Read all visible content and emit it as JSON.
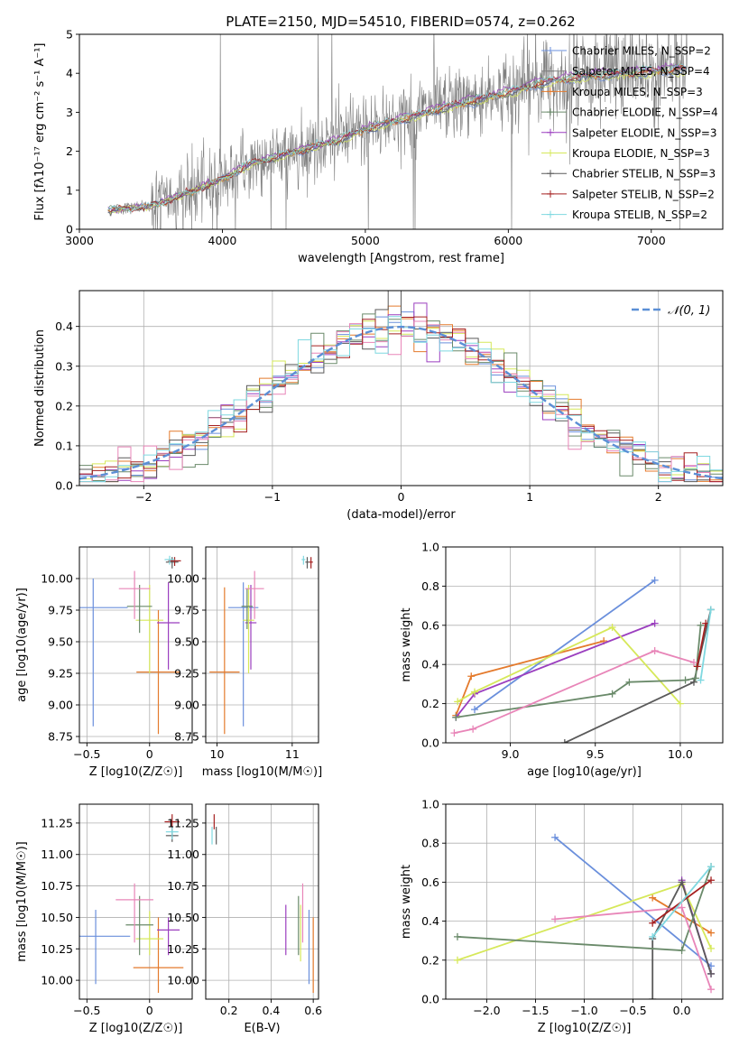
{
  "figure": {
    "title": "PLATE=2150, MJD=54510, FIBERID=0574, z=0.262"
  },
  "series_colors": [
    "#6a8fdc",
    "#e47a2c",
    "#9b3fbf",
    "#d6e85a",
    "#5a5a5a",
    "#6a8a6a",
    "#e885b8",
    "#a52020",
    "#7fd8e0"
  ],
  "chart_data": [
    {
      "id": "spectrum",
      "type": "line",
      "title": "PLATE=2150, MJD=54510, FIBERID=0574, z=0.262",
      "xlabel": "wavelength [Angstrom, rest frame]",
      "ylabel": "Flux [fλ10⁻¹⁷ erg cm⁻² s⁻¹ A⁻¹]",
      "xlim": [
        3000,
        7500
      ],
      "ylim": [
        0,
        5
      ],
      "xticks": [
        3000,
        4000,
        5000,
        6000,
        7000
      ],
      "yticks": [
        0,
        1,
        2,
        3,
        4,
        5
      ],
      "grid": false,
      "legend_position": "top-right",
      "observed_color": "#808080",
      "observed_range": [
        3200,
        7250
      ],
      "model_curve": {
        "x": [
          3200,
          3500,
          3800,
          4000,
          4200,
          4500,
          4800,
          5000,
          5300,
          5600,
          6000,
          6300,
          6600,
          6900,
          7200
        ],
        "y": [
          0.5,
          0.6,
          1.0,
          1.3,
          1.7,
          2.0,
          2.3,
          2.6,
          2.9,
          3.2,
          3.55,
          3.85,
          4.0,
          4.05,
          4.15
        ]
      },
      "series": [
        {
          "name": "Chabrier MILES, N_SSP=2",
          "color": "#6a8fdc"
        },
        {
          "name": "Salpeter MILES, N_SSP=4",
          "color": "#808080"
        },
        {
          "name": "Kroupa MILES, N_SSP=3",
          "color": "#e47a2c"
        },
        {
          "name": "Chabrier ELODIE, N_SSP=4",
          "color": "#6a8a6a"
        },
        {
          "name": "Salpeter ELODIE, N_SSP=3",
          "color": "#9b3fbf"
        },
        {
          "name": "Kroupa ELODIE, N_SSP=3",
          "color": "#d6e85a"
        },
        {
          "name": "Chabrier STELIB, N_SSP=3",
          "color": "#5a5a5a"
        },
        {
          "name": "Salpeter STELIB, N_SSP=2",
          "color": "#a52020"
        },
        {
          "name": "Kroupa STELIB, N_SSP=2",
          "color": "#7fd8e0"
        }
      ]
    },
    {
      "id": "residuals",
      "type": "line",
      "xlabel": "(data-model)/error",
      "ylabel": "Normed distribution",
      "xlim": [
        -2.5,
        2.5
      ],
      "ylim": [
        0,
        0.49
      ],
      "xticks": [
        -2,
        -1,
        0,
        1,
        2
      ],
      "yticks": [
        0.0,
        0.1,
        0.2,
        0.3,
        0.4
      ],
      "grid": true,
      "legend_position": "top-right",
      "gaussian": {
        "label": "𝒩(0, 1)",
        "color": "#5b8fd6"
      },
      "bin_width": 0.1
    },
    {
      "id": "age_vs_Z",
      "type": "scatter",
      "xlabel": "Z [log10(Z/Z☉)]",
      "ylabel": "age  [log10(age/yr)]",
      "xlim": [
        -0.56,
        0.34
      ],
      "ylim": [
        8.7,
        10.25
      ],
      "xticks": [
        -0.5,
        0.0
      ],
      "yticks": [
        8.75,
        9.0,
        9.25,
        9.5,
        9.75,
        10.0
      ],
      "grid": true,
      "points": [
        {
          "x": -0.45,
          "y": 9.77,
          "xerr": 0.55,
          "yerr": [
            8.83,
            10.0
          ],
          "color": "#6a8fdc"
        },
        {
          "x": 0.07,
          "y": 9.26,
          "xerr": 0.35,
          "yerr": [
            8.77,
            9.75
          ],
          "color": "#e47a2c"
        },
        {
          "x": 0.15,
          "y": 9.65,
          "xerr": 0.18,
          "yerr": [
            9.28,
            9.97
          ],
          "color": "#9b3fbf"
        },
        {
          "x": 0.0,
          "y": 9.67,
          "xerr": 0.22,
          "yerr": [
            9.25,
            9.95
          ],
          "color": "#d6e85a"
        },
        {
          "x": 0.18,
          "y": 10.13,
          "xerr": 0.1,
          "yerr": [
            10.08,
            10.17
          ],
          "color": "#5a5a5a"
        },
        {
          "x": -0.08,
          "y": 9.78,
          "xerr": 0.2,
          "yerr": [
            9.57,
            9.95
          ],
          "color": "#6a8a6a"
        },
        {
          "x": -0.12,
          "y": 9.92,
          "xerr": 0.25,
          "yerr": [
            9.68,
            10.06
          ],
          "color": "#e885b8"
        },
        {
          "x": 0.2,
          "y": 10.14,
          "xerr": 0.1,
          "yerr": [
            10.1,
            10.17
          ],
          "color": "#a52020"
        },
        {
          "x": 0.16,
          "y": 10.15,
          "xerr": 0.08,
          "yerr": [
            10.11,
            10.18
          ],
          "color": "#7fd8e0"
        }
      ]
    },
    {
      "id": "age_vs_mass",
      "type": "scatter",
      "xlabel": "mass [log10(M/M☉)]",
      "ylabel": "",
      "xlim": [
        9.85,
        11.35
      ],
      "ylim": [
        8.7,
        10.25
      ],
      "xticks": [
        10,
        11
      ],
      "yticks": [
        8.75,
        9.0,
        9.25,
        9.5,
        9.75,
        10.0
      ],
      "grid": true,
      "points": [
        {
          "x": 10.35,
          "y": 9.77,
          "xerr": 0.4,
          "yerr": [
            8.83,
            9.97
          ],
          "color": "#6a8fdc"
        },
        {
          "x": 10.1,
          "y": 9.26,
          "xerr": 0.4,
          "yerr": [
            8.77,
            9.93
          ],
          "color": "#e47a2c"
        },
        {
          "x": 10.45,
          "y": 9.65,
          "xerr": 0.15,
          "yerr": [
            9.28,
            9.95
          ],
          "color": "#9b3fbf"
        },
        {
          "x": 10.42,
          "y": 9.67,
          "xerr": 0.15,
          "yerr": [
            9.25,
            9.95
          ],
          "color": "#d6e85a"
        },
        {
          "x": 11.2,
          "y": 10.13,
          "xerr": 0.05,
          "yerr": [
            10.08,
            10.17
          ],
          "color": "#5a5a5a"
        },
        {
          "x": 10.4,
          "y": 9.78,
          "xerr": 0.15,
          "yerr": [
            9.6,
            9.92
          ],
          "color": "#6a8a6a"
        },
        {
          "x": 10.5,
          "y": 9.92,
          "xerr": 0.25,
          "yerr": [
            9.68,
            10.06
          ],
          "color": "#e885b8"
        },
        {
          "x": 11.25,
          "y": 10.13,
          "xerr": 0.05,
          "yerr": [
            10.08,
            10.17
          ],
          "color": "#a52020"
        },
        {
          "x": 11.15,
          "y": 10.15,
          "xerr": 0.05,
          "yerr": [
            10.11,
            10.18
          ],
          "color": "#7fd8e0"
        }
      ]
    },
    {
      "id": "weight_vs_age",
      "type": "line",
      "xlabel": "age  [log10(age/yr)]",
      "ylabel": "mass weight",
      "xlim": [
        8.62,
        10.25
      ],
      "ylim": [
        0.0,
        1.0
      ],
      "xticks": [
        9.0,
        9.5,
        10.0
      ],
      "yticks": [
        0.0,
        0.2,
        0.4,
        0.6,
        0.8,
        1.0
      ],
      "grid": true,
      "series": [
        {
          "color": "#6a8fdc",
          "x": [
            8.79,
            9.85
          ],
          "y": [
            0.17,
            0.83
          ]
        },
        {
          "color": "#e47a2c",
          "x": [
            8.68,
            8.77,
            9.55
          ],
          "y": [
            0.14,
            0.34,
            0.52
          ]
        },
        {
          "color": "#9b3fbf",
          "x": [
            8.68,
            8.79,
            9.85
          ],
          "y": [
            0.13,
            0.25,
            0.61
          ]
        },
        {
          "color": "#d6e85a",
          "x": [
            8.69,
            8.79,
            9.6,
            10.0
          ],
          "y": [
            0.21,
            0.26,
            0.59,
            0.2
          ]
        },
        {
          "color": "#5a5a5a",
          "x": [
            9.32,
            10.08,
            10.18
          ],
          "y": [
            0.0,
            0.31,
            0.68
          ]
        },
        {
          "color": "#6a8a6a",
          "x": [
            8.68,
            9.6,
            9.7,
            10.03,
            10.09,
            10.12
          ],
          "y": [
            0.13,
            0.25,
            0.31,
            0.32,
            0.33,
            0.6
          ]
        },
        {
          "color": "#e885b8",
          "x": [
            8.67,
            8.78,
            9.85,
            10.08
          ],
          "y": [
            0.05,
            0.07,
            0.47,
            0.41
          ]
        },
        {
          "color": "#a52020",
          "x": [
            10.1,
            10.15
          ],
          "y": [
            0.39,
            0.61
          ]
        },
        {
          "color": "#7fd8e0",
          "x": [
            10.12,
            10.18
          ],
          "y": [
            0.32,
            0.68
          ]
        }
      ]
    },
    {
      "id": "mass_vs_Z",
      "type": "scatter",
      "xlabel": "Z [log10(Z/Z☉)]",
      "ylabel": "mass [log10(M/M☉)]",
      "xlim": [
        -0.56,
        0.34
      ],
      "ylim": [
        9.85,
        11.4
      ],
      "xticks": [
        -0.5,
        0.0
      ],
      "yticks": [
        10.0,
        10.25,
        10.5,
        10.75,
        11.0,
        11.25
      ],
      "grid": true,
      "points": [
        {
          "x": -0.43,
          "y": 10.35,
          "xerr": 0.55,
          "yerr": [
            9.97,
            10.56
          ],
          "color": "#6a8fdc"
        },
        {
          "x": 0.07,
          "y": 10.1,
          "xerr": 0.4,
          "yerr": [
            9.9,
            10.5
          ],
          "color": "#e47a2c"
        },
        {
          "x": 0.15,
          "y": 10.4,
          "xerr": 0.18,
          "yerr": [
            10.2,
            10.5
          ],
          "color": "#9b3fbf"
        },
        {
          "x": 0.0,
          "y": 10.33,
          "xerr": 0.22,
          "yerr": [
            10.2,
            10.55
          ],
          "color": "#d6e85a"
        },
        {
          "x": 0.18,
          "y": 11.15,
          "xerr": 0.1,
          "yerr": [
            11.1,
            11.2
          ],
          "color": "#5a5a5a"
        },
        {
          "x": -0.08,
          "y": 10.44,
          "xerr": 0.22,
          "yerr": [
            10.2,
            10.67
          ],
          "color": "#6a8a6a"
        },
        {
          "x": -0.12,
          "y": 10.64,
          "xerr": 0.3,
          "yerr": [
            10.3,
            10.77
          ],
          "color": "#e885b8"
        },
        {
          "x": 0.18,
          "y": 11.26,
          "xerr": 0.12,
          "yerr": [
            11.2,
            11.32
          ],
          "color": "#a52020"
        },
        {
          "x": 0.18,
          "y": 11.18,
          "xerr": 0.1,
          "yerr": [
            11.12,
            11.22
          ],
          "color": "#7fd8e0"
        }
      ]
    },
    {
      "id": "mass_vs_EBV",
      "type": "scatter",
      "xlabel": "E(B-V)",
      "ylabel": "",
      "xlim": [
        0.09,
        0.625
      ],
      "ylim": [
        9.85,
        11.4
      ],
      "xticks": [
        0.2,
        0.4,
        0.6
      ],
      "yticks": [
        10.0,
        10.25,
        10.5,
        10.75,
        11.0,
        11.25
      ],
      "grid": true,
      "points": [
        {
          "x": 0.58,
          "y": 10.35,
          "yerr": [
            9.97,
            10.56
          ],
          "color": "#6a8fdc"
        },
        {
          "x": 0.6,
          "y": 10.1,
          "yerr": [
            9.9,
            10.5
          ],
          "color": "#e47a2c"
        },
        {
          "x": 0.47,
          "y": 10.4,
          "yerr": [
            10.2,
            10.6
          ],
          "color": "#9b3fbf"
        },
        {
          "x": 0.54,
          "y": 10.33,
          "yerr": [
            10.15,
            10.6
          ],
          "color": "#d6e85a"
        },
        {
          "x": 0.14,
          "y": 11.15,
          "yerr": [
            11.08,
            11.22
          ],
          "color": "#5a5a5a"
        },
        {
          "x": 0.53,
          "y": 10.44,
          "yerr": [
            10.2,
            10.67
          ],
          "color": "#6a8a6a"
        },
        {
          "x": 0.55,
          "y": 10.64,
          "yerr": [
            10.3,
            10.77
          ],
          "color": "#e885b8"
        },
        {
          "x": 0.13,
          "y": 11.26,
          "yerr": [
            11.2,
            11.32
          ],
          "color": "#a52020"
        },
        {
          "x": 0.12,
          "y": 11.15,
          "yerr": [
            11.08,
            11.22
          ],
          "color": "#7fd8e0"
        }
      ]
    },
    {
      "id": "weight_vs_Z",
      "type": "line",
      "xlabel": "Z [log10(Z/Z☉)]",
      "ylabel": "mass weight",
      "xlim": [
        -2.42,
        0.42
      ],
      "ylim": [
        0.0,
        1.0
      ],
      "xticks": [
        -2.0,
        -1.5,
        -1.0,
        -0.5,
        0.0
      ],
      "yticks": [
        0.0,
        0.2,
        0.4,
        0.6,
        0.8,
        1.0
      ],
      "grid": true,
      "series": [
        {
          "color": "#6a8fdc",
          "x": [
            -1.3,
            0.3
          ],
          "y": [
            0.83,
            0.17
          ]
        },
        {
          "color": "#e47a2c",
          "x": [
            -0.3,
            0.3
          ],
          "y": [
            0.52,
            0.34
          ]
        },
        {
          "color": "#9b3fbf",
          "x": [
            0.0,
            0.3
          ],
          "y": [
            0.61,
            0.13
          ]
        },
        {
          "color": "#d6e85a",
          "x": [
            -2.3,
            0.0,
            0.3
          ],
          "y": [
            0.2,
            0.59,
            0.26
          ]
        },
        {
          "color": "#5a5a5a",
          "x": [
            -0.3,
            -0.3,
            0.0,
            0.3
          ],
          "y": [
            0.0,
            0.31,
            0.6,
            0.13
          ]
        },
        {
          "color": "#6a8a6a",
          "x": [
            -2.3,
            0.0,
            0.3
          ],
          "y": [
            0.32,
            0.25,
            0.68
          ]
        },
        {
          "color": "#e885b8",
          "x": [
            -1.3,
            0.0,
            0.3
          ],
          "y": [
            0.41,
            0.47,
            0.05
          ]
        },
        {
          "color": "#a52020",
          "x": [
            -0.3,
            0.3
          ],
          "y": [
            0.39,
            0.61
          ]
        },
        {
          "color": "#7fd8e0",
          "x": [
            -0.3,
            0.3
          ],
          "y": [
            0.32,
            0.68
          ]
        }
      ]
    }
  ]
}
